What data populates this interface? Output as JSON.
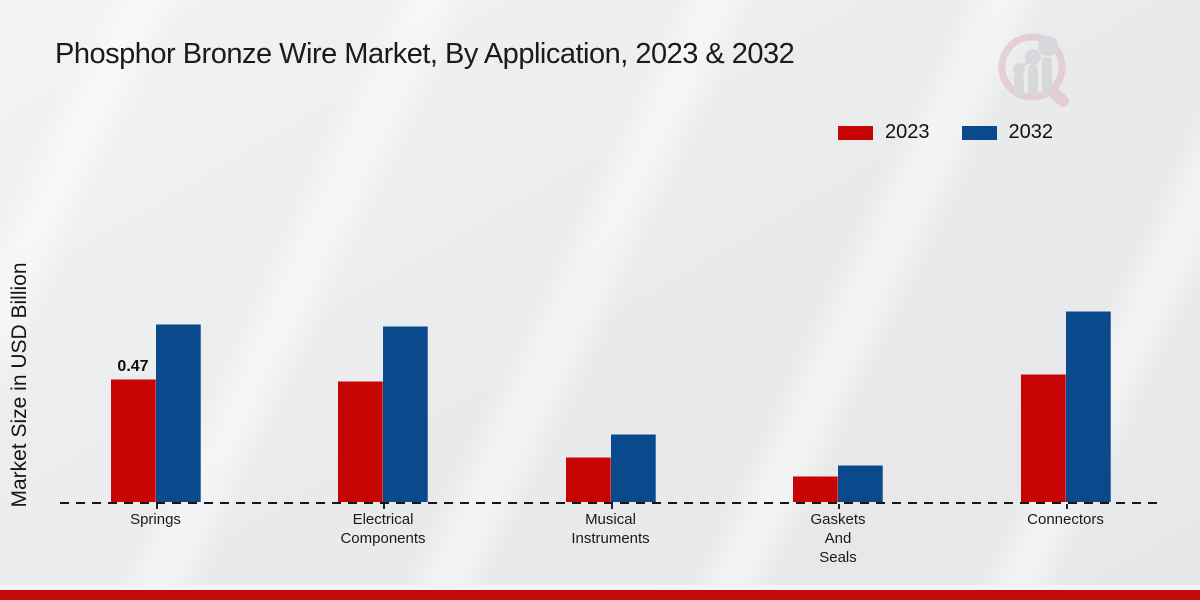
{
  "title": "Phosphor Bronze Wire Market, By Application, 2023 & 2032",
  "y_axis_label": "Market Size in USD Billion",
  "legend": {
    "items": [
      {
        "label": "2023",
        "color": "#c80505"
      },
      {
        "label": "2032",
        "color": "#0a4a8c"
      }
    ]
  },
  "colors": {
    "series_2023": "#c80505",
    "series_2032": "#0a4a8c",
    "footer_accent": "#c20a0a",
    "axis": "#161616",
    "background": "#e9eaec"
  },
  "watermark": {
    "name": "market-research-magnifier-logo"
  },
  "chart_data": {
    "type": "bar",
    "title": "Phosphor Bronze Wire Market, By Application, 2023 & 2032",
    "xlabel": "",
    "ylabel": "Market Size in USD Billion",
    "unit": "USD Billion",
    "categories": [
      "Springs",
      "Electrical Components",
      "Musical Instruments",
      "Gaskets And Seals",
      "Connectors"
    ],
    "category_labels": [
      "Springs",
      "Electrical\nComponents",
      "Musical\nInstruments",
      "Gaskets\nAnd\nSeals",
      "Connectors"
    ],
    "series": [
      {
        "name": "2023",
        "color": "#c80505",
        "values": [
          0.47,
          0.46,
          0.17,
          0.1,
          0.49
        ]
      },
      {
        "name": "2032",
        "color": "#0a4a8c",
        "values": [
          0.68,
          0.67,
          0.26,
          0.14,
          0.73
        ]
      }
    ],
    "bar_labels": [
      {
        "series_index": 0,
        "category_index": 0,
        "text": "0.47"
      }
    ],
    "ylim": [
      0,
      0.8
    ],
    "grid": false,
    "legend_position": "top-right",
    "baseline_style": "dashed"
  }
}
